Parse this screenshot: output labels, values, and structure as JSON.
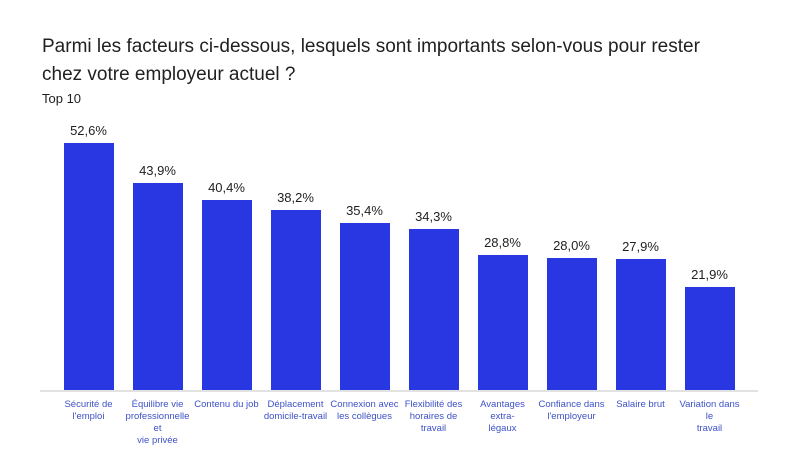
{
  "chart_data": {
    "type": "bar",
    "title": "Parmi les facteurs ci-dessous, lesquels sont importants selon-vous pour rester chez votre employeur actuel ?",
    "subtitle": "Top 10",
    "categories": [
      "Sécurité de l'emploi",
      "Équilibre vie professionnelle et vie privée",
      "Contenu du job",
      "Déplacement domicile-travail",
      "Connexion avec les collègues",
      "Flexibilité des horaires de travail",
      "Avantages extra-légaux",
      "Confiance dans l'employeur",
      "Salaire brut",
      "Variation dans le travail"
    ],
    "categories_display": [
      "Sécurité de\nl'emploi",
      "Équilibre vie\nprofessionnelle et\nvie privée",
      "Contenu du job",
      "Déplacement\ndomicile-travail",
      "Connexion avec\nles collègues",
      "Flexibilité des\nhoraires de\ntravail",
      "Avantages extra-\nlégaux",
      "Confiance dans\nl'employeur",
      "Salaire brut",
      "Variation dans le\ntravail"
    ],
    "values": [
      52.6,
      43.9,
      40.4,
      38.2,
      35.4,
      34.3,
      28.8,
      28.0,
      27.9,
      21.9
    ],
    "value_labels": [
      "52,6%",
      "43,9%",
      "40,4%",
      "38,2%",
      "35,4%",
      "34,3%",
      "28,8%",
      "28,0%",
      "27,9%",
      "21,9%"
    ],
    "xlabel": "",
    "ylabel": "",
    "ylim": [
      0,
      57.8
    ],
    "grid": false,
    "legend": "none",
    "bar_color": "#2837E2",
    "value_label_color": "#1F1F1F",
    "category_label_color": "#3E51C5",
    "axis_line_color": "#E2E2E2",
    "title_color": "#212121"
  }
}
